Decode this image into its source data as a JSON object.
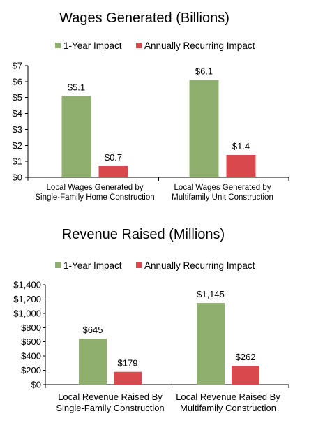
{
  "chart_data": [
    {
      "type": "bar",
      "title": "Wages Generated (Billions)",
      "categories": [
        [
          "Local Wages Generated by",
          "Single-Family Home Construction"
        ],
        [
          "Local Wages Generated by",
          "Multifamily Unit Construction"
        ]
      ],
      "series": [
        {
          "name": "1-Year Impact",
          "color": "#8FAF6E",
          "values": [
            5.1,
            6.1
          ],
          "labels": [
            "$5.1",
            "$6.1"
          ]
        },
        {
          "name": "Annually Recurring Impact",
          "color": "#D9484C",
          "values": [
            0.7,
            1.4
          ],
          "labels": [
            "$0.7",
            "$1.4"
          ]
        }
      ],
      "ylim": [
        0,
        7
      ],
      "yticks": [
        0,
        1,
        2,
        3,
        4,
        5,
        6,
        7
      ],
      "ytick_labels": [
        "$0",
        "$1",
        "$2",
        "$3",
        "$4",
        "$5",
        "$6",
        "$7"
      ],
      "legend": "top-center",
      "grid": false
    },
    {
      "type": "bar",
      "title": "Revenue Raised (Millions)",
      "categories": [
        [
          "Local Revenue Raised By",
          "Single-Family Construction"
        ],
        [
          "Local Revenue Raised By",
          "Multifamily Construction"
        ]
      ],
      "series": [
        {
          "name": "1-Year Impact",
          "color": "#8FAF6E",
          "values": [
            645,
            1145
          ],
          "labels": [
            "$645",
            "$1,145"
          ]
        },
        {
          "name": "Annually Recurring Impact",
          "color": "#D9484C",
          "values": [
            179,
            262
          ],
          "labels": [
            "$179",
            "$262"
          ]
        }
      ],
      "ylim": [
        0,
        1400
      ],
      "yticks": [
        0,
        200,
        400,
        600,
        800,
        1000,
        1200,
        1400
      ],
      "ytick_labels": [
        "$0",
        "$200",
        "$400",
        "$600",
        "$800",
        "$1,000",
        "$1,200",
        "$1,400"
      ],
      "legend": "top-center",
      "grid": false
    }
  ]
}
